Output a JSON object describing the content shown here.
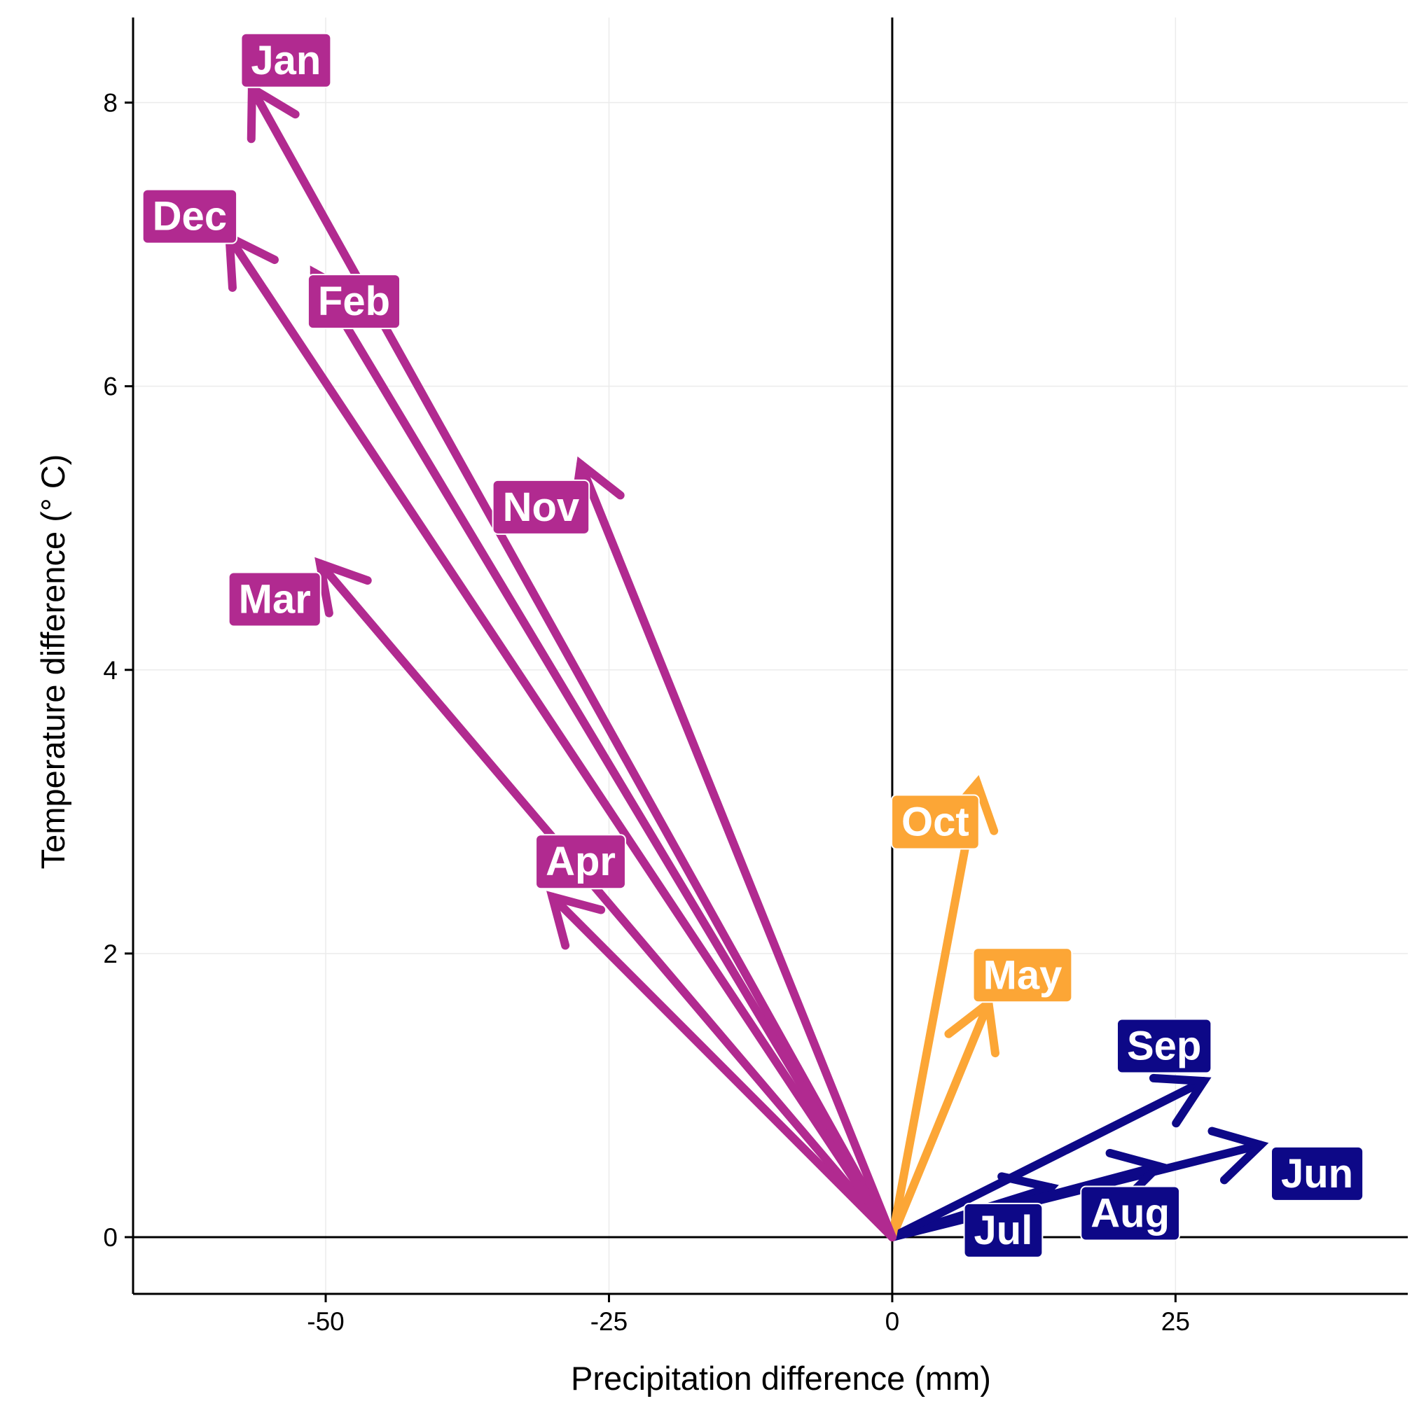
{
  "chart_data": {
    "type": "vector",
    "title": "",
    "xlabel": "Precipitation difference (mm)",
    "ylabel": "Temperature difference (° C)",
    "xlim": [
      -67,
      45.5
    ],
    "ylim": [
      -0.4,
      8.6
    ],
    "xticks": [
      -50,
      -25,
      0,
      25
    ],
    "xtick_labels": [
      "-50",
      "-25",
      "0",
      "25"
    ],
    "yticks": [
      0,
      2,
      4,
      6,
      8
    ],
    "ytick_labels": [
      "0",
      "2",
      "4",
      "6",
      "8"
    ],
    "grid": true,
    "reference_lines": {
      "x": 0,
      "y": 0
    },
    "colors": {
      "winter": "#b12a90",
      "warm_shoulder": "#fca636",
      "summer": "#0d0887",
      "grid": "#ebebeb",
      "axis": "#000000"
    },
    "origin": [
      0,
      0
    ],
    "vectors": [
      {
        "month": "Jan",
        "x": -56.5,
        "y": 8.1,
        "group": "winter"
      },
      {
        "month": "Feb",
        "x": -51.0,
        "y": 6.8,
        "group": "winter"
      },
      {
        "month": "Mar",
        "x": -50.5,
        "y": 4.75,
        "group": "winter"
      },
      {
        "month": "Apr",
        "x": -30.0,
        "y": 2.4,
        "group": "winter"
      },
      {
        "month": "May",
        "x": 8.5,
        "y": 1.65,
        "group": "warm_shoulder"
      },
      {
        "month": "Jun",
        "x": 32.5,
        "y": 0.65,
        "group": "summer"
      },
      {
        "month": "Jul",
        "x": 14.0,
        "y": 0.35,
        "group": "summer"
      },
      {
        "month": "Aug",
        "x": 23.5,
        "y": 0.5,
        "group": "summer"
      },
      {
        "month": "Sep",
        "x": 27.5,
        "y": 1.1,
        "group": "summer"
      },
      {
        "month": "Oct",
        "x": 7.5,
        "y": 3.2,
        "group": "warm_shoulder"
      },
      {
        "month": "Nov",
        "x": -27.5,
        "y": 5.45,
        "group": "winter"
      },
      {
        "month": "Dec",
        "x": -58.5,
        "y": 7.05,
        "group": "winter"
      }
    ],
    "labels": [
      {
        "text": "Jan",
        "x": -53.5,
        "y": 8.3,
        "group": "winter"
      },
      {
        "text": "Feb",
        "x": -47.5,
        "y": 6.6,
        "group": "winter"
      },
      {
        "text": "Mar",
        "x": -54.5,
        "y": 4.5,
        "group": "winter"
      },
      {
        "text": "Apr",
        "x": -27.5,
        "y": 2.65,
        "group": "winter"
      },
      {
        "text": "May",
        "x": 11.5,
        "y": 1.85,
        "group": "warm_shoulder"
      },
      {
        "text": "Jun",
        "x": 37.5,
        "y": 0.45,
        "group": "summer"
      },
      {
        "text": "Jul",
        "x": 9.8,
        "y": 0.05,
        "group": "summer"
      },
      {
        "text": "Aug",
        "x": 21.0,
        "y": 0.17,
        "group": "summer"
      },
      {
        "text": "Sep",
        "x": 24.0,
        "y": 1.35,
        "group": "summer"
      },
      {
        "text": "Oct",
        "x": 3.8,
        "y": 2.93,
        "group": "warm_shoulder"
      },
      {
        "text": "Nov",
        "x": -31.0,
        "y": 5.15,
        "group": "winter"
      },
      {
        "text": "Dec",
        "x": -62.0,
        "y": 7.2,
        "group": "winter"
      }
    ]
  }
}
